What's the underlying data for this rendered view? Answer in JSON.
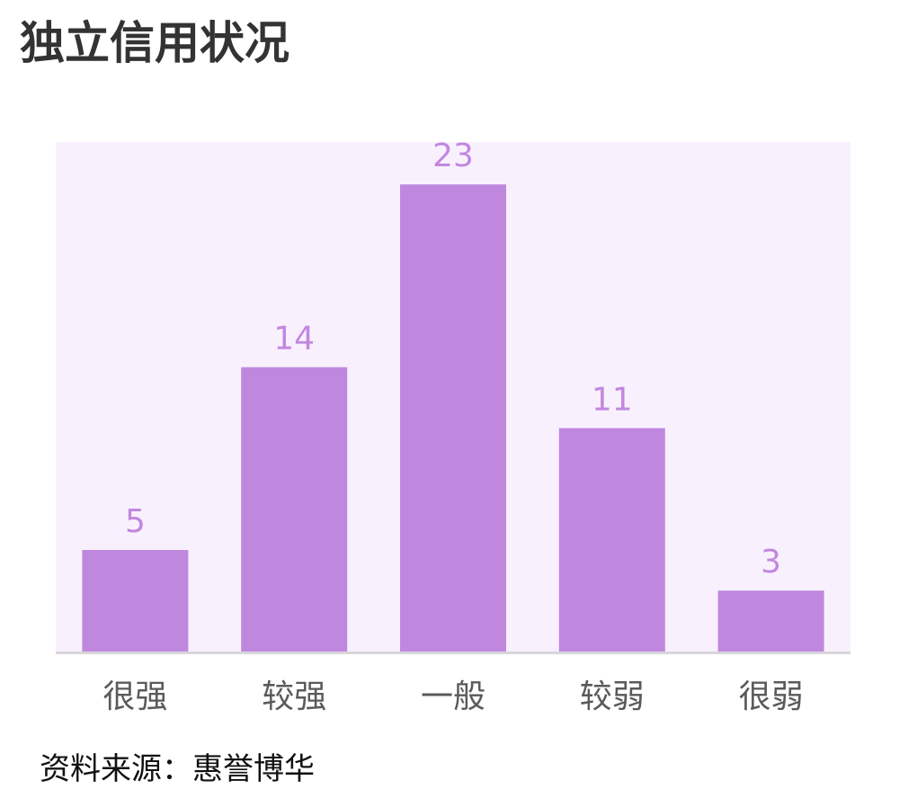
{
  "title": "独立信用状况",
  "source": "资料来源：惠誉博华",
  "colors": {
    "bar": "#bf88de",
    "value_label": "#c287e0",
    "plot_background": "#f8f1fd",
    "axis_line": "#d9d5dc",
    "category_label": "#5a5a5a"
  },
  "chart_data": {
    "type": "bar",
    "categories": [
      "很强",
      "较强",
      "一般",
      "较弱",
      "很弱"
    ],
    "values": [
      5,
      14,
      23,
      11,
      3
    ],
    "title": "独立信用状况",
    "xlabel": "",
    "ylabel": "",
    "ylim": [
      0,
      25
    ],
    "grid": false
  }
}
